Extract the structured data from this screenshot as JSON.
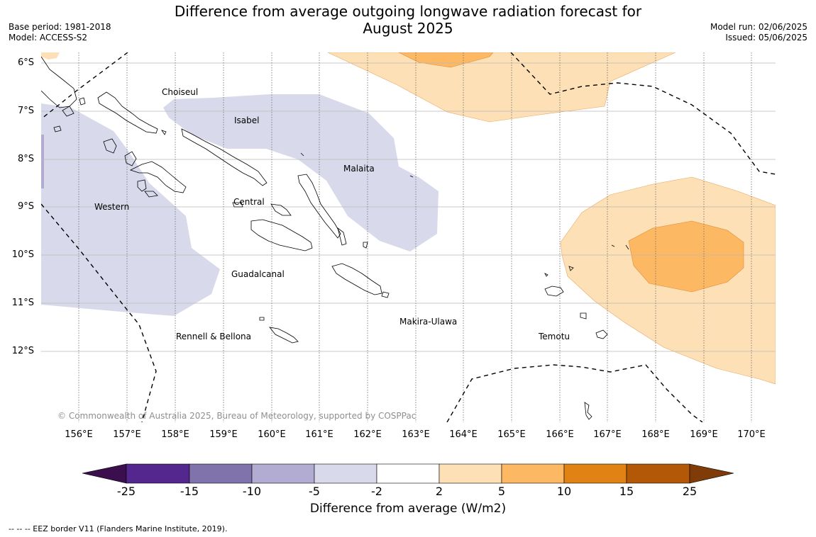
{
  "title": {
    "line1": "Difference from average outgoing longwave radiation forecast for",
    "line2": "August 2025"
  },
  "meta_left": {
    "base_period": "Base period: 1981-2018",
    "model": "Model: ACCESS-S2"
  },
  "meta_right": {
    "model_run": "Model run: 02/06/2025",
    "issued": "Issued: 05/06/2025"
  },
  "map": {
    "latitude_labels": [
      "6°S",
      "7°S",
      "8°S",
      "9°S",
      "10°S",
      "11°S",
      "12°S"
    ],
    "longitude_labels": [
      "156°E",
      "157°E",
      "158°E",
      "159°E",
      "160°E",
      "161°E",
      "162°E",
      "163°E",
      "164°E",
      "165°E",
      "166°E",
      "167°E",
      "168°E",
      "169°E",
      "170°E"
    ],
    "lat_range_deg_s": [
      6.0,
      13.5
    ],
    "lon_range_deg_e": [
      155.3,
      170.5
    ],
    "regions": [
      {
        "name": "Choiseul"
      },
      {
        "name": "Isabel"
      },
      {
        "name": "Malaita"
      },
      {
        "name": "Western"
      },
      {
        "name": "Central"
      },
      {
        "name": "Guadalcanal"
      },
      {
        "name": "Makira-Ulawa"
      },
      {
        "name": "Rennell & Bellona"
      },
      {
        "name": "Temotu"
      }
    ],
    "copyright": "© Commonwealth of Australia 2025, Bureau of Meteorology, supported by COSPPac"
  },
  "colorbar": {
    "ticks": [
      "-25",
      "-15",
      "-10",
      "-5",
      "-2",
      "2",
      "5",
      "10",
      "15",
      "25"
    ],
    "colors": [
      "#3b0f4e",
      "#54278f",
      "#8073ac",
      "#b2abd2",
      "#d8daeb",
      "#ffffff",
      "#fee0b6",
      "#fdb863",
      "#e08214",
      "#b35806",
      "#7f3b08"
    ],
    "label": "Difference from average (W/m2)"
  },
  "legend_note": "--  --  -- EEZ border V11 (Flanders Marine Institute, 2019)."
}
